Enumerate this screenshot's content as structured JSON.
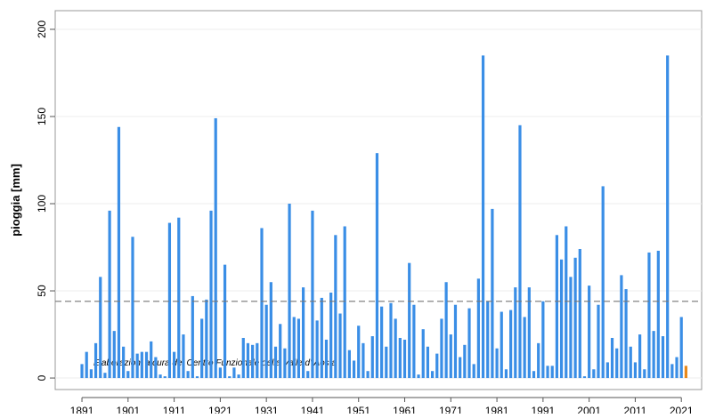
{
  "chart_data": {
    "type": "bar",
    "y_label": "pioggia [mm]",
    "annotation": "Elaborazioni a cura del Centro Funzionale della Valle d' Aosta",
    "xlim": [
      1885.2,
      2025.4
    ],
    "ylim": [
      -6.6,
      210.7
    ],
    "xticks": [
      1891,
      1901,
      1911,
      1921,
      1931,
      1941,
      1951,
      1961,
      1971,
      1981,
      1991,
      2001,
      2011,
      2021
    ],
    "yticks": [
      0,
      50,
      100,
      150,
      200
    ],
    "grid": true,
    "reference_line": 44,
    "series": [
      {
        "color": "#3a8ee6",
        "x": [
          1891,
          1892,
          1893,
          1894,
          1895,
          1896,
          1897,
          1898,
          1899,
          1900,
          1901,
          1902,
          1903,
          1904,
          1905,
          1906,
          1907,
          1908,
          1909,
          1910,
          1911,
          1912,
          1913,
          1914,
          1915,
          1916,
          1917,
          1918,
          1919,
          1920,
          1921,
          1922,
          1923,
          1924,
          1925,
          1926,
          1927,
          1928,
          1929,
          1930,
          1931,
          1932,
          1933,
          1934,
          1935,
          1936,
          1937,
          1938,
          1939,
          1940,
          1941,
          1942,
          1943,
          1944,
          1945,
          1946,
          1947,
          1948,
          1949,
          1950,
          1951,
          1952,
          1953,
          1954,
          1955,
          1956,
          1957,
          1958,
          1959,
          1960,
          1961,
          1962,
          1963,
          1964,
          1965,
          1966,
          1967,
          1968,
          1969,
          1970,
          1971,
          1972,
          1973,
          1974,
          1975,
          1976,
          1977,
          1978,
          1979,
          1980,
          1981,
          1982,
          1983,
          1984,
          1985,
          1986,
          1987,
          1988,
          1989,
          1990,
          1991,
          1992,
          1993,
          1994,
          1995,
          1996,
          1997,
          1998,
          1999,
          2000,
          2001,
          2002,
          2003,
          2004,
          2005,
          2006,
          2007,
          2008,
          2009,
          2010,
          2011,
          2012,
          2013,
          2014,
          2015,
          2016,
          2017,
          2018,
          2019,
          2020,
          2021
        ],
        "values": [
          8,
          15,
          5,
          20,
          58,
          3,
          96,
          27,
          144,
          18,
          4,
          81,
          14,
          15,
          15,
          21,
          12,
          2,
          1,
          89,
          15,
          92,
          25,
          4,
          47,
          1,
          34,
          45,
          96,
          149,
          6,
          65,
          1,
          6,
          2,
          23,
          20,
          19,
          20,
          86,
          42,
          55,
          18,
          31,
          17,
          100,
          35,
          34,
          52,
          4,
          96,
          33,
          46,
          22,
          49,
          82,
          37,
          87,
          16,
          10,
          30,
          20,
          4,
          24,
          129,
          41,
          18,
          43,
          34,
          23,
          22,
          66,
          42,
          2,
          28,
          18,
          4,
          14,
          34,
          55,
          25,
          42,
          12,
          19,
          40,
          8,
          57,
          185,
          44,
          97,
          17,
          38,
          5,
          39,
          52,
          145,
          35,
          52,
          4,
          20,
          44,
          7,
          7,
          82,
          68,
          87,
          58,
          69,
          74,
          1,
          53,
          5,
          42,
          110,
          9,
          23,
          17,
          59,
          51,
          18,
          9,
          25,
          5,
          72,
          27,
          73,
          24,
          185,
          8,
          12,
          35
        ]
      },
      {
        "color": "#e8891c",
        "x": [
          2022
        ],
        "values": [
          7
        ]
      }
    ]
  }
}
